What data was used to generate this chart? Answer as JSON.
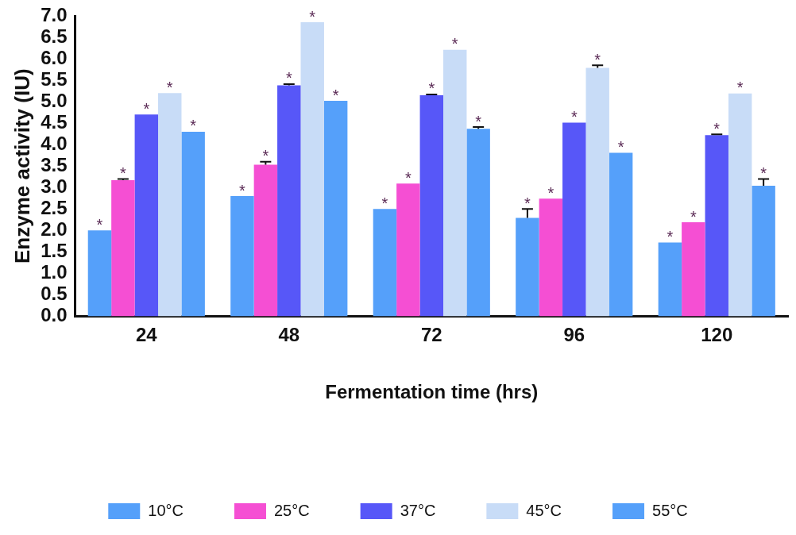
{
  "chart_data": {
    "type": "bar",
    "xlabel": "Fermentation time (hrs)",
    "ylabel": "Enzyme activity (IU)",
    "categories": [
      "24",
      "48",
      "72",
      "96",
      "120"
    ],
    "series": [
      {
        "name": "10°C",
        "color": "#55a0fa",
        "values": [
          2.0,
          2.8,
          2.5,
          2.29,
          1.72
        ],
        "errors": [
          null,
          null,
          null,
          [
            2.29,
            2.5
          ],
          null
        ],
        "value_labels": [
          "*",
          "*",
          "*",
          "*",
          "*"
        ]
      },
      {
        "name": "25°C",
        "color": "#f54fd3",
        "values": [
          3.17,
          3.53,
          3.09,
          2.74,
          2.19
        ],
        "errors": [
          [
            3.17,
            3.2
          ],
          [
            3.53,
            3.6
          ],
          null,
          null,
          null
        ],
        "value_labels": [
          "*",
          "*",
          "*",
          "*",
          "*"
        ]
      },
      {
        "name": "37°C",
        "color": "#5757f8",
        "values": [
          4.7,
          5.38,
          5.15,
          4.51,
          4.22
        ],
        "errors": [
          null,
          [
            5.38,
            5.41
          ],
          [
            5.15,
            5.17
          ],
          null,
          [
            4.22,
            4.24
          ]
        ],
        "value_labels": [
          "*",
          "*",
          "*",
          "*",
          "*"
        ]
      },
      {
        "name": "45°C",
        "color": "#c8dcf7",
        "values": [
          5.2,
          6.85,
          6.21,
          5.79,
          5.19
        ],
        "errors": [
          null,
          null,
          null,
          [
            5.79,
            5.85
          ],
          null
        ],
        "value_labels": [
          "*",
          "*",
          "*",
          "*",
          "*"
        ]
      },
      {
        "name": "55°C",
        "color": "#55a0fa",
        "values": [
          4.3,
          5.02,
          4.37,
          3.81,
          3.04
        ],
        "errors": [
          null,
          null,
          [
            4.37,
            4.41
          ],
          null,
          [
            3.04,
            3.2
          ]
        ],
        "value_labels": [
          "*",
          "*",
          "*",
          "*",
          "*"
        ]
      }
    ],
    "ylim": [
      0,
      7
    ],
    "yticks": [
      {
        "value": 0,
        "label": "0.0"
      },
      {
        "value": 0.5,
        "label": "0.5"
      },
      {
        "value": 1,
        "label": "1.0"
      },
      {
        "value": 1.5,
        "label": "1.5"
      },
      {
        "value": 2,
        "label": "2.0"
      },
      {
        "value": 2.5,
        "label": "2.5"
      },
      {
        "value": 3,
        "label": "3.0"
      },
      {
        "value": 3.5,
        "label": "3.5"
      },
      {
        "value": 4,
        "label": "4.0"
      },
      {
        "value": 4.5,
        "label": "4.5"
      },
      {
        "value": 5,
        "label": "5.0"
      },
      {
        "value": 5.5,
        "label": "5.5"
      },
      {
        "value": 6,
        "label": "6.0"
      },
      {
        "value": 6.5,
        "label": "6.5"
      },
      {
        "value": 7,
        "label": "7.0"
      }
    ],
    "grid": false,
    "legend": "bottom"
  }
}
